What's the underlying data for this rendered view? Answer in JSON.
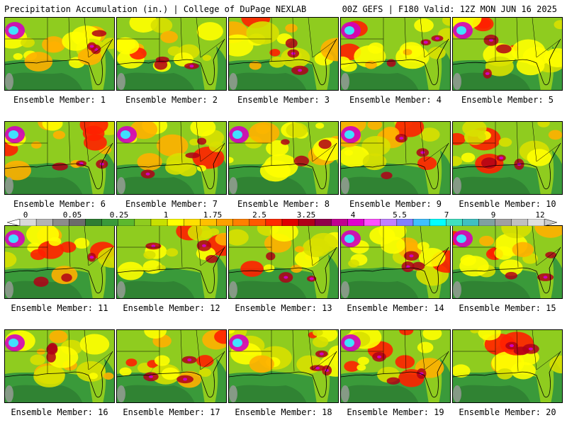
{
  "header": {
    "left": "Precipitation Accumulation (in.) | College of DuPage NEXLAB",
    "right": "00Z GEFS | F180 Valid: 12Z MON JUN 16 2025"
  },
  "panels": [
    {
      "caption": "Ensemble Member: 1"
    },
    {
      "caption": "Ensemble Member: 2"
    },
    {
      "caption": "Ensemble Member: 3"
    },
    {
      "caption": "Ensemble Member: 4"
    },
    {
      "caption": "Ensemble Member: 5"
    },
    {
      "caption": "Ensemble Member: 6"
    },
    {
      "caption": "Ensemble Member: 7"
    },
    {
      "caption": "Ensemble Member: 8"
    },
    {
      "caption": "Ensemble Member: 9"
    },
    {
      "caption": "Ensemble Member: 10"
    },
    {
      "caption": "Ensemble Member: 11"
    },
    {
      "caption": "Ensemble Member: 12"
    },
    {
      "caption": "Ensemble Member: 13"
    },
    {
      "caption": "Ensemble Member: 14"
    },
    {
      "caption": "Ensemble Member: 15"
    },
    {
      "caption": "Ensemble Member: 16"
    },
    {
      "caption": "Ensemble Member: 17"
    },
    {
      "caption": "Ensemble Member: 18"
    },
    {
      "caption": "Ensemble Member: 19"
    },
    {
      "caption": "Ensemble Member: 20"
    }
  ],
  "colorbar": {
    "labels": [
      "0",
      "0.05",
      "0.25",
      "1",
      "1.75",
      "2.5",
      "3.25",
      "4",
      "5.5",
      "7",
      "9",
      "12"
    ],
    "colors": [
      "#d9d9d9",
      "#b3b3b3",
      "#8c8c8c",
      "#6b6b6b",
      "#2e7d32",
      "#3a9a3a",
      "#5cb82e",
      "#8fcc1f",
      "#c8e000",
      "#ffff00",
      "#ffe000",
      "#ffc000",
      "#ffa000",
      "#ff8000",
      "#ff5a00",
      "#ff2a00",
      "#e00000",
      "#b00018",
      "#90004a",
      "#c00090",
      "#e000d0",
      "#ff50ff",
      "#c080ff",
      "#8080ff",
      "#40c0ff",
      "#00ffff",
      "#40e0c0",
      "#40c0c0",
      "#80a0a0",
      "#a0a0a0",
      "#c0c0c0",
      "#e0e0e0"
    ]
  },
  "map_colors": {
    "land_wet": "#d8e000",
    "land_base": "#8fcc1f",
    "yellow": "#ffff00",
    "orange": "#ffb000",
    "red": "#ff2000",
    "darkred": "#b00018",
    "magenta": "#d000c0",
    "cyan": "#40e0ff",
    "gulf": "#3a9a3a",
    "gulf_dark": "#2e7d32",
    "gray": "#9a9a9a"
  }
}
